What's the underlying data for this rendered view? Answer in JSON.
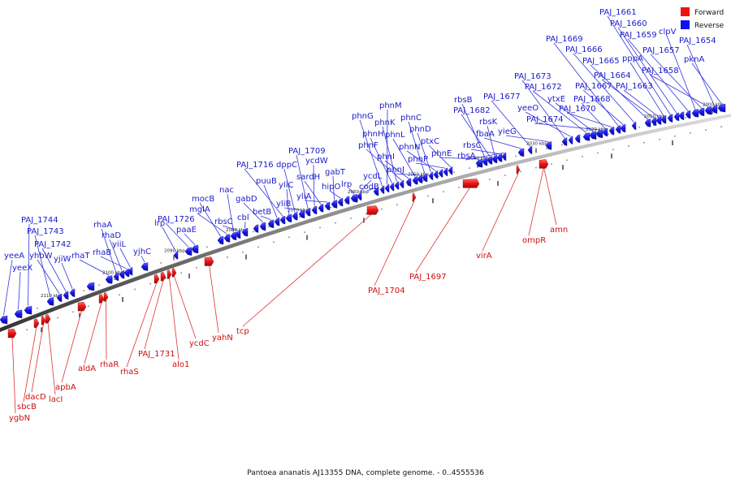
{
  "legend": [
    {
      "label": "Forward",
      "color": "#ee1111"
    },
    {
      "label": "Reverse",
      "color": "#1111ee"
    }
  ],
  "caption": "Pantoea ananatis AJ13355 DNA, complete genome. - 0..4555536",
  "kbp_ticks": [
    "2110 kbp",
    "2100 kbp",
    "2090 kbp",
    "2080 kbp",
    "2070 kbp",
    "2060 kbp",
    "2050 kbp",
    "2040 kbp",
    "2030 kbp",
    "2020 kbp",
    "2010 kbp",
    "2000 kbp"
  ],
  "reverse_genes": [
    "yeeA",
    "yeeX",
    "PAJ_1744",
    "PAJ_1743",
    "yhbW",
    "PAJ_1742",
    "yjiW",
    "rhaT",
    "rhaA",
    "rhaD",
    "rhaB",
    "yiiL",
    "yjhC",
    "lrp",
    "PAJ_1726",
    "paaE",
    "mocB",
    "mglA",
    "nac",
    "rbsC",
    "cbl",
    "gabD",
    "betB",
    "puuB",
    "PAJ_1716",
    "yliC",
    "dppC",
    "yliB",
    "PAJ_1709",
    "ycdW",
    "sardH",
    "yliA",
    "gabT",
    "hipO",
    "lrp",
    "ycdL",
    "codB",
    "phnG",
    "phnM",
    "phnH",
    "phnK",
    "phnF",
    "phnI",
    "phnL",
    "phnJ",
    "phnC",
    "phnD",
    "phnN",
    "phnP",
    "ptxC",
    "phnE",
    "rbsB",
    "PAJ_1682",
    "rbsK",
    "rbsC",
    "rbsA",
    "fbaA",
    "PAJ_1677",
    "yieG",
    "PAJ_1673",
    "yeeO",
    "PAJ_1672",
    "ytxE",
    "PAJ_1674",
    "PAJ_1668",
    "PAJ_1670",
    "PAJ_1669",
    "PAJ_1667",
    "PAJ_1666",
    "PAJ_1665",
    "PAJ_1664",
    "PAJ_1663",
    "pppA",
    "PAJ_1661",
    "PAJ_1660",
    "PAJ_1659",
    "clpV",
    "PAJ_1657",
    "PAJ_1658",
    "PAJ_1654",
    "pknA"
  ],
  "forward_genes": [
    "ygbN",
    "sbcB",
    "dacD",
    "lacI",
    "apbA",
    "aldA",
    "rhaR",
    "rhaS",
    "PAJ_1731",
    "alo1",
    "ycdC",
    "yahN",
    "tcp",
    "PAJ_1704",
    "PAJ_1697",
    "virA",
    "ompR",
    "amn"
  ]
}
